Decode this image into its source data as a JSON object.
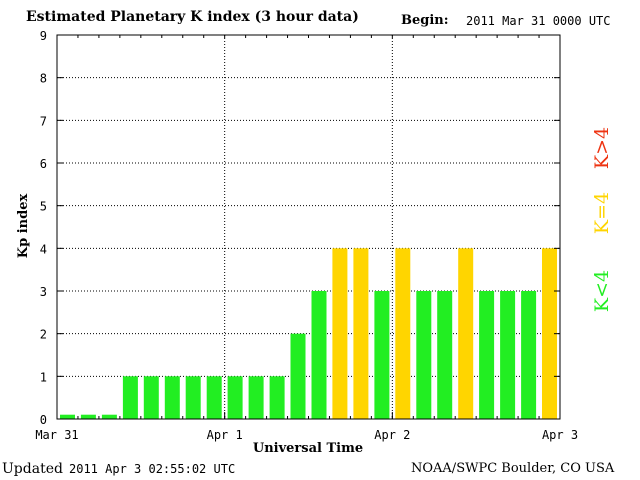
{
  "header": {
    "title": "Estimated Planetary K index (3 hour data)",
    "begin_label": "Begin:",
    "begin_value": "2011 Mar 31 0000 UTC"
  },
  "footer": {
    "updated_label": "Updated",
    "updated_value": "2011 Apr  3 02:55:02 UTC",
    "credit": "NOAA/SWPC Boulder, CO USA"
  },
  "colors": {
    "low": "#22ee22",
    "mid": "#ffd500",
    "high": "#ee3311"
  },
  "chart_data": {
    "type": "bar",
    "title": "Estimated Planetary K index (3 hour data)",
    "xlabel": "Universal Time",
    "ylabel": "Kp index",
    "ylim": [
      0,
      9
    ],
    "yticks": [
      "0",
      "1",
      "2",
      "3",
      "4",
      "5",
      "6",
      "7",
      "8",
      "9"
    ],
    "xticks": [
      "Mar 31",
      "Apr 1",
      "Apr 2",
      "Apr 3"
    ],
    "grid": true,
    "interval_hours": 3,
    "values": [
      0,
      0,
      0,
      1,
      1,
      1,
      1,
      1,
      1,
      1,
      1,
      2,
      3,
      4,
      4,
      3,
      4,
      3,
      3,
      4,
      3,
      3,
      3,
      4
    ],
    "legend": [
      {
        "label": "K<4",
        "color": "#22ee22"
      },
      {
        "label": "K=4",
        "color": "#ffd500"
      },
      {
        "label": "K>4",
        "color": "#ee3311"
      }
    ],
    "legend_placement": "right"
  }
}
